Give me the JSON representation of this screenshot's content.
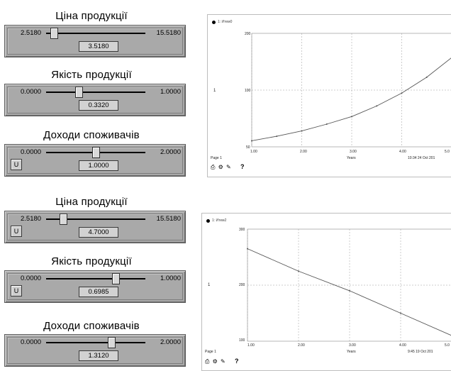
{
  "controls": [
    {
      "title": "Ціна продукції",
      "min": "2.5180",
      "max": "15.5180",
      "value": "3.5180",
      "fraction": 0.08,
      "has_u": false
    },
    {
      "title": "Якість продукції",
      "min": "0.0000",
      "max": "1.0000",
      "value": "0.3320",
      "fraction": 0.33,
      "has_u": false
    },
    {
      "title": "Доходи споживачів",
      "min": "0.0000",
      "max": "2.0000",
      "value": "1.0000",
      "fraction": 0.5,
      "has_u": true,
      "u_label": "U"
    },
    {
      "title": "Ціна продукції",
      "min": "2.5180",
      "max": "15.5180",
      "value": "4.7000",
      "fraction": 0.17,
      "has_u": true,
      "u_label": "U"
    },
    {
      "title": "Якість продукції",
      "min": "0.0000",
      "max": "1.0000",
      "value": "0.6985",
      "fraction": 0.7,
      "has_u": true,
      "u_label": "U"
    },
    {
      "title": "Доходи споживачів",
      "min": "0.0000",
      "max": "2.0000",
      "value": "1.3120",
      "fraction": 0.66,
      "has_u": false
    }
  ],
  "graphs": [
    {
      "legend": "1: Итем0",
      "y_top": "200",
      "y_mid": "100",
      "y_bot": "50",
      "y_axis_label": "1",
      "x_ticks": [
        "1.00",
        "2.00",
        "3.00",
        "4.00",
        "5.0"
      ],
      "x_label": "Years",
      "page_label": "Page 1",
      "stamp": "10:34  24 Oct 201",
      "toolbar": "⎙ ⚙ ✎",
      "help": "?",
      "chart_data": {
        "type": "line",
        "x": [
          1.0,
          1.5,
          2.0,
          2.5,
          3.0,
          3.5,
          4.0,
          4.5,
          5.0
        ],
        "y": [
          58,
          64,
          71,
          80,
          90,
          104,
          121,
          142,
          168
        ],
        "ylim": [
          50,
          200
        ],
        "xlim": [
          1,
          5
        ]
      }
    },
    {
      "legend": "1: Итем2",
      "y_top": "300",
      "y_mid": "200",
      "y_bot": "100",
      "y_axis_label": "1",
      "x_ticks": [
        "1.00",
        "2.00",
        "3.00",
        "4.00",
        "5.0"
      ],
      "x_label": "Years",
      "page_label": "Page 1",
      "stamp": "9:45  19 Oct 201",
      "toolbar": "⎙ ⚙ ✎",
      "help": "?",
      "chart_data": {
        "type": "line",
        "x": [
          1.0,
          2.0,
          3.0,
          4.0,
          5.0
        ],
        "y": [
          265,
          225,
          190,
          150,
          110
        ],
        "ylim": [
          100,
          300
        ],
        "xlim": [
          1,
          5
        ]
      }
    }
  ]
}
